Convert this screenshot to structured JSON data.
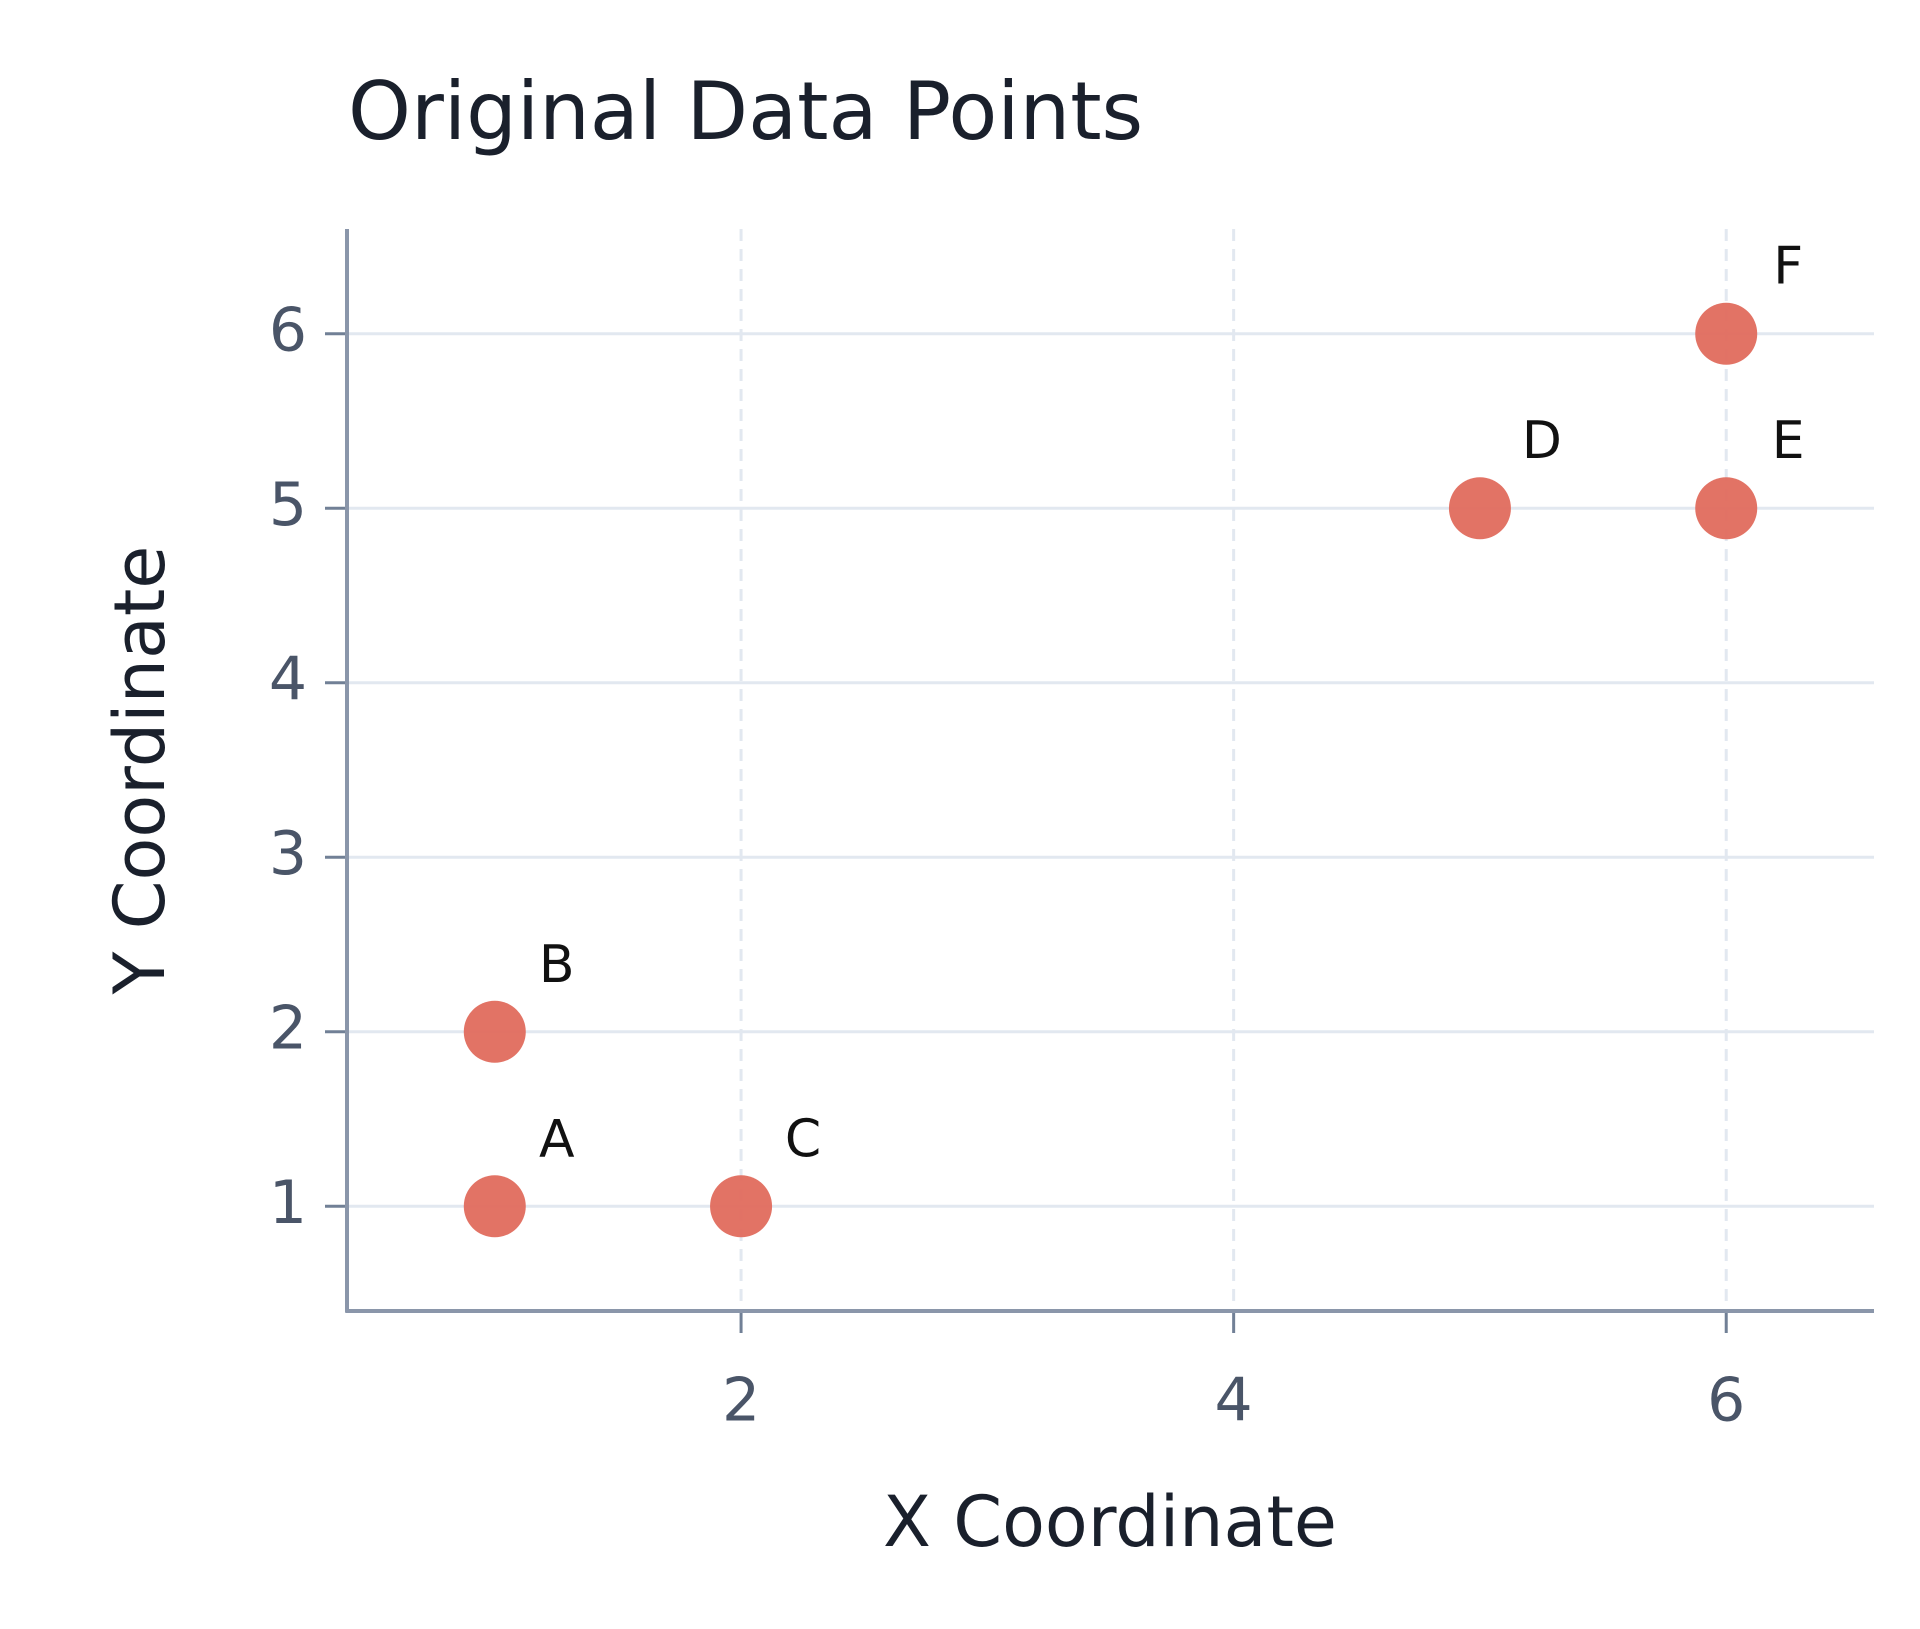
{
  "chart_data": {
    "type": "scatter",
    "title": "Original Data Points",
    "x_label": "X Coordinate",
    "y_label": "Y Coordinate",
    "x": [
      1,
      1,
      2,
      5,
      6,
      6
    ],
    "values": [
      1,
      2,
      1,
      5,
      5,
      6
    ],
    "point_labels": [
      "A",
      "B",
      "C",
      "D",
      "E",
      "F"
    ],
    "color": "#e06b5d",
    "xlim": [
      0.4,
      6.6
    ],
    "xticks": [
      2,
      4,
      6
    ],
    "ylim": [
      0.4,
      6.6
    ],
    "yticks": [
      1,
      2,
      3,
      4,
      5,
      6
    ],
    "grid": true
  }
}
